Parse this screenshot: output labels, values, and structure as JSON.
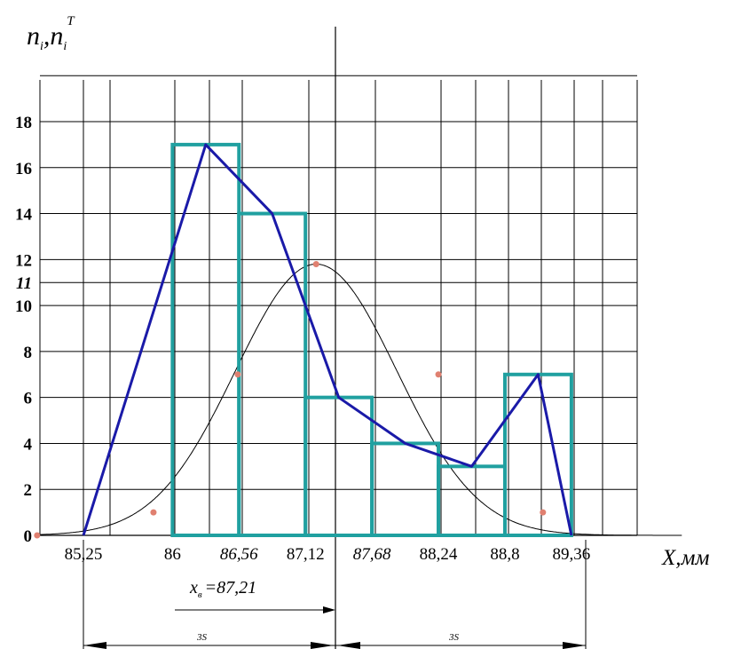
{
  "chart_data": {
    "type": "bar",
    "title": "",
    "ylabel": {
      "main": "n",
      "sub1": "i",
      "comma": ",",
      "main2": "n",
      "sub2": "i",
      "sup": "T"
    },
    "xlabel": "X,мм",
    "ylim": [
      0,
      20
    ],
    "y_ticks": [
      {
        "value": 0,
        "label": "0",
        "italic": false
      },
      {
        "value": 2,
        "label": "2",
        "italic": false
      },
      {
        "value": 4,
        "label": "4",
        "italic": false
      },
      {
        "value": 6,
        "label": "6",
        "italic": false
      },
      {
        "value": 8,
        "label": "8",
        "italic": false
      },
      {
        "value": 10,
        "label": "10",
        "italic": false
      },
      {
        "value": 11,
        "label": "11",
        "italic": true
      },
      {
        "value": 12,
        "label": "12",
        "italic": false
      },
      {
        "value": 14,
        "label": "14",
        "italic": false
      },
      {
        "value": 16,
        "label": "16",
        "italic": false
      },
      {
        "value": 18,
        "label": "18",
        "italic": false
      }
    ],
    "x_ticks": [
      {
        "value": 85.25,
        "label": "85,25",
        "italic": false
      },
      {
        "value": 86,
        "label": "86",
        "italic": false
      },
      {
        "value": 86.56,
        "label": "86,56",
        "italic": true
      },
      {
        "value": 87.12,
        "label": "87,12",
        "italic": false
      },
      {
        "value": 87.68,
        "label": "87,68",
        "italic": true
      },
      {
        "value": 88.24,
        "label": "88,24",
        "italic": false
      },
      {
        "value": 88.8,
        "label": "88,8",
        "italic": false
      },
      {
        "value": 89.36,
        "label": "89,36",
        "italic": false
      }
    ],
    "histogram": {
      "color": "#20a0a0",
      "bins": [
        {
          "x0": 86.0,
          "x1": 86.56,
          "count": 17
        },
        {
          "x0": 86.56,
          "x1": 87.12,
          "count": 14
        },
        {
          "x0": 87.12,
          "x1": 87.68,
          "count": 6
        },
        {
          "x0": 87.68,
          "x1": 88.24,
          "count": 4
        },
        {
          "x0": 88.24,
          "x1": 88.8,
          "count": 3
        },
        {
          "x0": 88.8,
          "x1": 89.36,
          "count": 7
        }
      ]
    },
    "polygon": {
      "color": "#1a1aa8",
      "points": [
        [
          85.25,
          0
        ],
        [
          86.28,
          17
        ],
        [
          86.84,
          14
        ],
        [
          87.4,
          6
        ],
        [
          87.96,
          4
        ],
        [
          88.52,
          3
        ],
        [
          89.08,
          7
        ],
        [
          89.36,
          0
        ]
      ]
    },
    "normal_curve": {
      "color": "#000000",
      "mean": 87.21,
      "peak": 11.8,
      "sigma": 0.68,
      "marker_color": "#e08070",
      "markers": [
        [
          84.86,
          0
        ],
        [
          85.84,
          1.0
        ],
        [
          86.55,
          7.0
        ],
        [
          87.21,
          11.8
        ],
        [
          88.24,
          7.0
        ],
        [
          89.12,
          1.0
        ]
      ]
    },
    "annotations": {
      "mean_label": {
        "var": "x",
        "sub": "в",
        "text": "=87,21"
      },
      "three_sigma_left": "3S",
      "three_sigma_right": "3S"
    }
  }
}
